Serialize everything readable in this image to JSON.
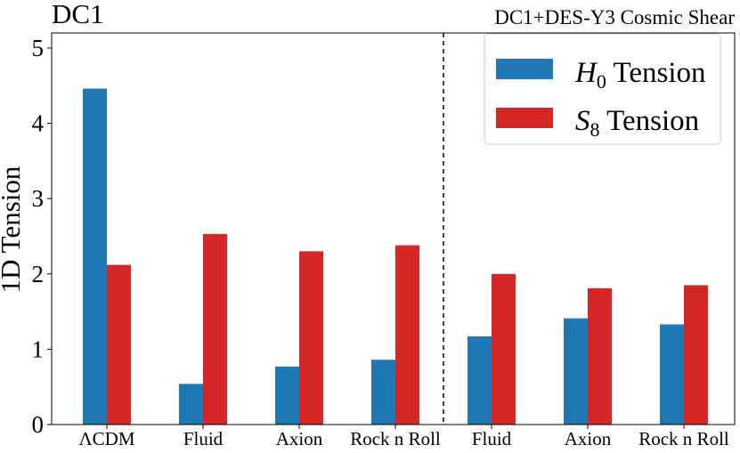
{
  "chart_data": {
    "type": "bar",
    "title_left": "DC1",
    "title_right": "DC1+DES-Y3 Cosmic Shear",
    "xlabel": "",
    "ylabel": "1D Tension",
    "ylim": [
      0,
      5.2
    ],
    "yticks": [
      "0",
      "1",
      "2",
      "3",
      "4",
      "5"
    ],
    "categories": [
      "ΛCDM",
      "Fluid",
      "Axion",
      "Rock n Roll",
      "Fluid",
      "Axion",
      "Rock n Roll"
    ],
    "series": [
      {
        "name": "H0 Tension",
        "name_main": "H",
        "name_sub": "0",
        "name_tail": " Tension",
        "color": "#1f77b4",
        "values": [
          4.46,
          0.54,
          0.77,
          0.86,
          1.17,
          1.41,
          1.33
        ]
      },
      {
        "name": "S8 Tension",
        "name_main": "S",
        "name_sub": "8",
        "name_tail": " Tension",
        "color": "#d62728",
        "values": [
          2.12,
          2.53,
          2.3,
          2.38,
          2.0,
          1.81,
          1.85
        ]
      }
    ],
    "divider": "dashed vertical line between Rock n Roll and Fluid",
    "legend_position": "top-right",
    "grid": false
  }
}
